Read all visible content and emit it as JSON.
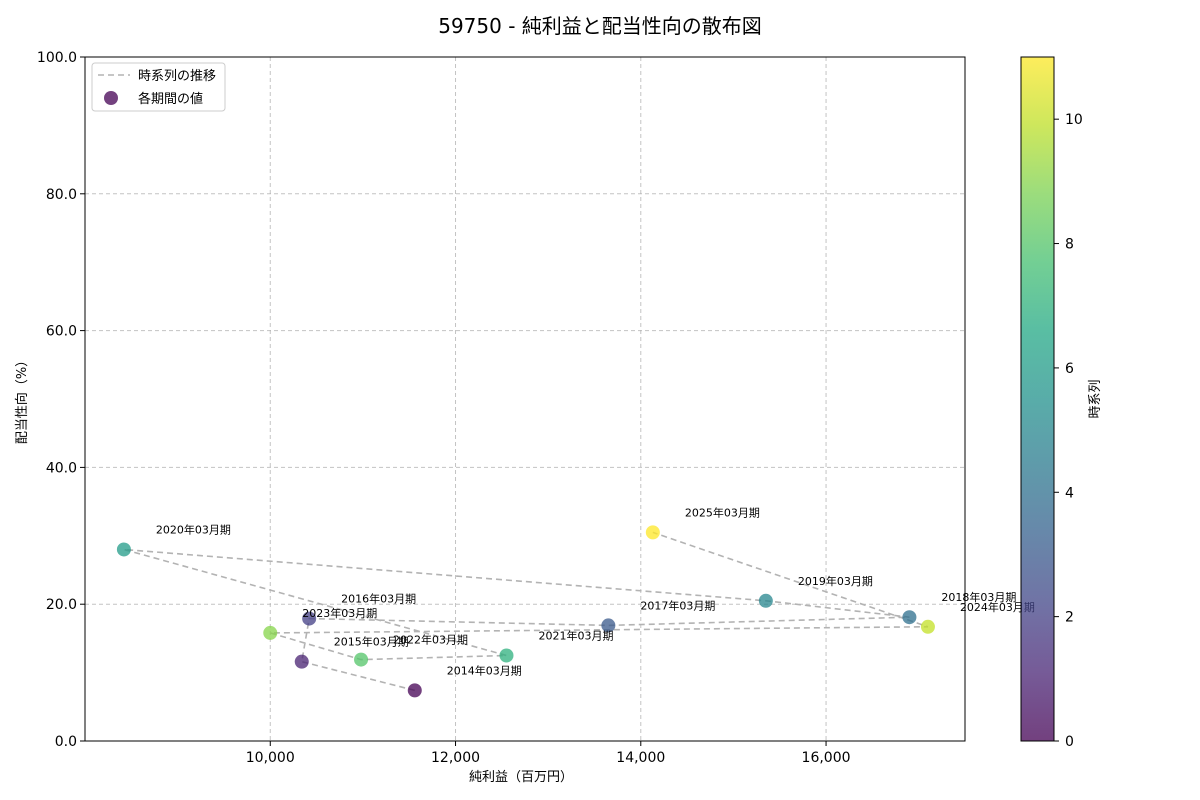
{
  "chart_data": {
    "type": "scatter",
    "title": "59750 - 純利益と配当性向の散布図",
    "xlabel": "純利益（百万円）",
    "ylabel": "配当性向（%）",
    "xlim": [
      8000,
      17500
    ],
    "ylim": [
      0,
      100
    ],
    "x_ticks": [
      10000,
      12000,
      14000,
      16000
    ],
    "x_tick_labels": [
      "10,000",
      "12,000",
      "14,000",
      "16,000"
    ],
    "y_ticks": [
      0,
      20,
      40,
      60,
      80,
      100
    ],
    "y_tick_labels": [
      "0.0",
      "20.0",
      "40.0",
      "60.0",
      "80.0",
      "100.0"
    ],
    "grid": true,
    "legend": {
      "placement": "top-left",
      "entries": [
        {
          "key": "trend",
          "label": "時系列の推移"
        },
        {
          "key": "points",
          "label": "各期間の値"
        }
      ]
    },
    "colorbar": {
      "label": "時系列",
      "range": [
        0,
        11
      ],
      "ticks": [
        0,
        2,
        4,
        6,
        8,
        10
      ],
      "tick_labels": [
        "0",
        "2",
        "4",
        "6",
        "8",
        "10"
      ]
    },
    "points": [
      {
        "label": "2014年03月期",
        "x": 11560,
        "y": 7.4,
        "t": 0
      },
      {
        "label": "2015年03月期",
        "x": 10340,
        "y": 11.6,
        "t": 1
      },
      {
        "label": "2016年03月期",
        "x": 10420,
        "y": 17.9,
        "t": 2
      },
      {
        "label": "2017年03月期",
        "x": 13650,
        "y": 16.9,
        "t": 3
      },
      {
        "label": "2018年03月期",
        "x": 16900,
        "y": 18.1,
        "t": 4
      },
      {
        "label": "2019年03月期",
        "x": 15350,
        "y": 20.5,
        "t": 5
      },
      {
        "label": "2020年03月期",
        "x": 8420,
        "y": 28.0,
        "t": 6
      },
      {
        "label": "2021年03月期",
        "x": 12550,
        "y": 12.5,
        "t": 7
      },
      {
        "label": "2022年03月期",
        "x": 10980,
        "y": 11.9,
        "t": 8
      },
      {
        "label": "2023年03月期",
        "x": 10000,
        "y": 15.8,
        "t": 9
      },
      {
        "label": "2024年03月期",
        "x": 17100,
        "y": 16.7,
        "t": 10
      },
      {
        "label": "2025年03月期",
        "x": 14130,
        "y": 30.5,
        "t": 11
      }
    ]
  }
}
